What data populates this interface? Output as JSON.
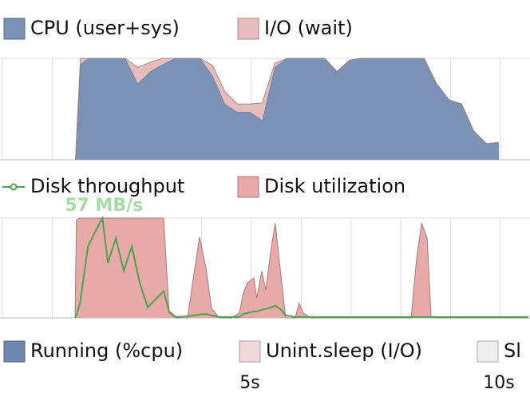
{
  "chart_data": [
    {
      "type": "area",
      "stacked": true,
      "x": [
        1.5,
        1.6,
        1.75,
        2.0,
        2.25,
        2.5,
        2.75,
        3.0,
        3.25,
        3.5,
        3.75,
        4.0,
        4.25,
        4.5,
        4.75,
        5.0,
        5.25,
        5.5,
        5.75,
        6.0,
        6.25,
        6.5,
        6.75,
        7.0,
        7.25,
        7.5,
        7.75,
        8.0,
        8.25,
        8.5,
        8.75,
        9.0,
        9.25,
        9.5,
        9.75,
        10.0
      ],
      "series": [
        {
          "name": "CPU (user+sys)",
          "color": "#7b91b6",
          "values": [
            0,
            94,
            100,
            100,
            100,
            100,
            75,
            87,
            94,
            100,
            100,
            100,
            83,
            55,
            47,
            47,
            39,
            91,
            100,
            100,
            100,
            100,
            87,
            98,
            100,
            100,
            100,
            100,
            100,
            100,
            75,
            59,
            55,
            28,
            16,
            17
          ]
        },
        {
          "name": "I/O (wait)",
          "color": "#e6bcbc",
          "values": [
            0,
            6,
            0,
            0,
            0,
            0,
            16,
            9,
            6,
            0,
            0,
            0,
            10,
            12,
            8,
            8,
            17,
            4,
            0,
            0,
            0,
            0,
            0,
            0,
            0,
            0,
            0,
            0,
            0,
            0,
            0,
            0,
            0,
            0,
            0,
            0
          ]
        }
      ],
      "xlim": [
        0,
        10.6
      ],
      "ylim": [
        0,
        100
      ],
      "xgrid": [
        0,
        1,
        2,
        3,
        4,
        5,
        6,
        7,
        8,
        9,
        10
      ]
    },
    {
      "type": "area",
      "stacked": false,
      "annotation": "57 MB/s",
      "x": [
        1.49,
        1.52,
        1.59,
        1.75,
        1.91,
        2.04,
        2.15,
        2.31,
        2.47,
        2.63,
        2.79,
        2.95,
        3.11,
        3.27,
        3.38,
        3.51,
        3.75,
        3.88,
        3.99,
        4.12,
        4.23,
        4.39,
        4.63,
        4.79,
        4.87,
        4.95,
        5.08,
        5.14,
        5.24,
        5.32,
        5.43,
        5.51,
        5.63,
        5.72,
        5.83,
        5.91,
        5.99,
        6.07,
        6.23,
        6.39,
        8.24,
        8.35,
        8.45,
        8.56,
        8.64,
        8.96,
        9.6,
        10.24,
        10.59
      ],
      "series": [
        {
          "name": "Disk utilization",
          "color": "#e8a9a9",
          "values": [
            0,
            98,
            100,
            100,
            100,
            100,
            100,
            100,
            100,
            100,
            100,
            100,
            100,
            100,
            5,
            0,
            0,
            45,
            81,
            50,
            10,
            0,
            0,
            5,
            25,
            35,
            40,
            20,
            47,
            28,
            70,
            95,
            40,
            0,
            0,
            0,
            15,
            5,
            0,
            0,
            0,
            60,
            95,
            80,
            0,
            0,
            0,
            0,
            0
          ]
        },
        {
          "name": "Disk throughput",
          "color": "#4da34d",
          "type": "line",
          "axis": "y2",
          "values": [
            0,
            1.4,
            8.3,
            40.8,
            50,
            57,
            31.5,
            45.4,
            26.9,
            40.8,
            19.9,
            6,
            10.7,
            15.3,
            3.7,
            0.5,
            0.9,
            1.4,
            1.9,
            2.3,
            1.4,
            0.5,
            0.5,
            0.5,
            2.3,
            2.8,
            3.7,
            3.7,
            4.6,
            5.1,
            6,
            7,
            4.6,
            1.4,
            0.9,
            0.5,
            0.5,
            0.5,
            0.5,
            0.5,
            0.5,
            0.5,
            0.5,
            0.5,
            0.5,
            0.5,
            0.5,
            0.5,
            0.5
          ]
        }
      ],
      "xlim": [
        0,
        10.6
      ],
      "ylim": [
        0,
        100
      ],
      "y2lim": [
        0,
        57
      ],
      "xgrid": [
        0,
        1,
        2,
        3,
        4,
        5,
        6,
        7,
        8,
        9,
        10
      ]
    },
    {
      "type": "process",
      "series": [
        {
          "name": "Running (%cpu)",
          "color": "#6f87ae"
        },
        {
          "name": "Unint.sleep (I/O)",
          "color": "#f1d9d9"
        },
        {
          "name": "Sl",
          "color": "#eeeeee"
        }
      ],
      "xlim": [
        0,
        10.6
      ],
      "xticks": [
        {
          "value": 5,
          "label": "5s"
        },
        {
          "value": 10,
          "label": "10s"
        }
      ]
    }
  ]
}
